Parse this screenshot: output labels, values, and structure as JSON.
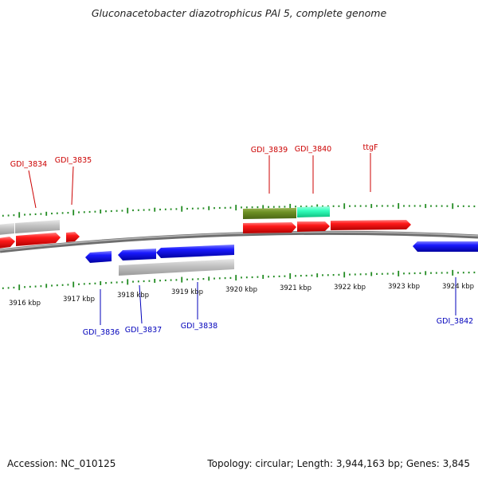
{
  "title": "Gluconacetobacter diazotrophicus PAl 5, complete genome",
  "footer": {
    "accession": "Accession: NC_010125",
    "info": "Topology: circular; Length: 3,944,163 bp; Genes: 3,845"
  },
  "colors": {
    "forward_label": "#cc0000",
    "reverse_label": "#0000bb",
    "tick": "#228b22",
    "backbone": "#888888",
    "red_gene": "#ff1a1a",
    "blue_gene": "#1a1aff",
    "gray_gene": "#c0c0c0",
    "olive_gene": "#6b8e23",
    "teal_gene": "#33ffbb"
  },
  "scale_labels": [
    "3916 kbp",
    "3917 kbp",
    "3918 kbp",
    "3919 kbp",
    "3920 kbp",
    "3921 kbp",
    "3922 kbp",
    "3923 kbp",
    "3924 kbp"
  ],
  "forward_labels": [
    "GDI_3834",
    "GDI_3835",
    "GDI_3839",
    "GDI_3840",
    "ttgF"
  ],
  "reverse_labels": [
    "GDI_3836",
    "GDI_3837",
    "GDI_3838",
    "GDI_3842"
  ]
}
